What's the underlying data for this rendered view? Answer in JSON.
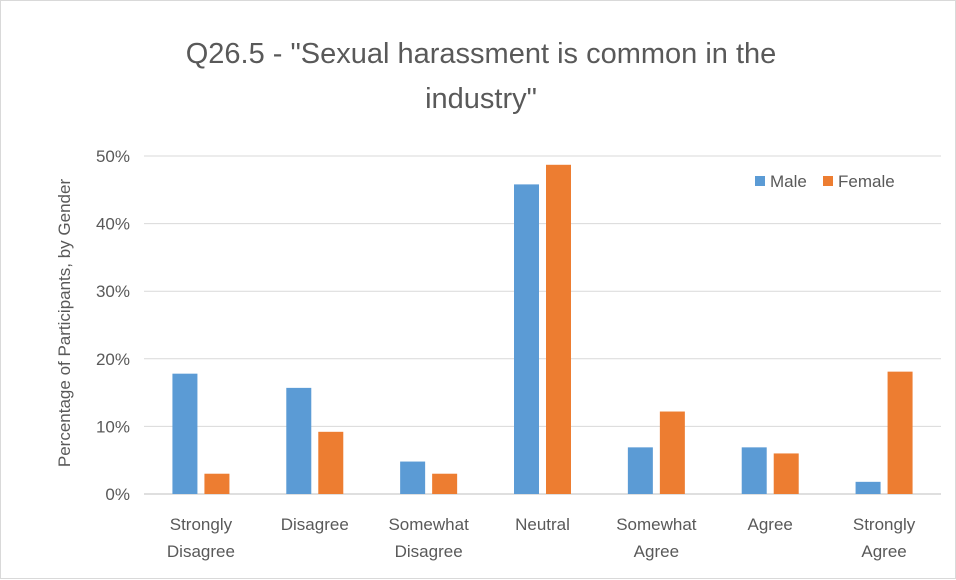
{
  "chart_data": {
    "type": "bar",
    "title_lines": [
      "Q26.5 - \"Sexual harassment is common in the",
      "industry\""
    ],
    "ylabel": "Percentage of Participants, by Gender",
    "xlabel": "",
    "categories": [
      [
        "Strongly",
        "Disagree"
      ],
      [
        "Disagree"
      ],
      [
        "Somewhat",
        "Disagree"
      ],
      [
        "Neutral"
      ],
      [
        "Somewhat",
        "Agree"
      ],
      [
        "Agree"
      ],
      [
        "Strongly",
        "Agree"
      ]
    ],
    "series": [
      {
        "name": "Male",
        "color": "#5b9bd5",
        "values": [
          17.8,
          15.7,
          4.8,
          45.8,
          6.9,
          6.9,
          1.8
        ]
      },
      {
        "name": "Female",
        "color": "#ed7d31",
        "values": [
          3.0,
          9.2,
          3.0,
          48.7,
          12.2,
          6.0,
          18.1
        ]
      }
    ],
    "ylim": [
      0,
      50
    ],
    "yticks": [
      0,
      10,
      20,
      30,
      40,
      50
    ],
    "ytick_labels": [
      "0%",
      "10%",
      "20%",
      "30%",
      "40%",
      "50%"
    ],
    "grid": true,
    "legend_position": "top-right"
  }
}
